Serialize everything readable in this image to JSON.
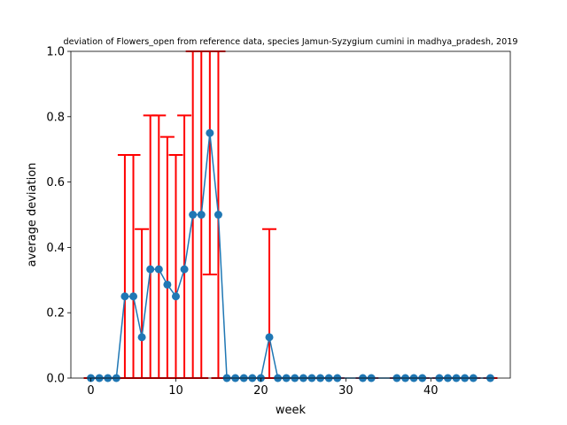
{
  "chart_data": {
    "type": "line",
    "title": "deviation of Flowers_open from reference data, species Jamun-Syzygium cumini in madhya_pradesh, 2019",
    "xlabel": "week",
    "ylabel": "average deviation",
    "xlim": [
      -2.35,
      49.35
    ],
    "ylim": [
      0,
      1
    ],
    "xticks": [
      0,
      10,
      20,
      30,
      40
    ],
    "yticks": [
      0.0,
      0.2,
      0.4,
      0.6,
      0.8,
      1.0
    ],
    "xtick_labels": [
      "0",
      "10",
      "20",
      "30",
      "40"
    ],
    "ytick_labels": [
      "0.0",
      "0.2",
      "0.4",
      "0.6",
      "0.8",
      "1.0"
    ],
    "grid": false,
    "line_color": "#1f77b4",
    "errorbar_color": "#ff0000",
    "series": [
      {
        "x": [
          0,
          1,
          2,
          3,
          4,
          5,
          6,
          7,
          8,
          9,
          10,
          11,
          12,
          13,
          14,
          15,
          16,
          17,
          18,
          19,
          20,
          21,
          22,
          23,
          24,
          25,
          26,
          27,
          28,
          29,
          32,
          33,
          36,
          37,
          38,
          39,
          41,
          42,
          43,
          44,
          45,
          47
        ],
        "y": [
          0,
          0,
          0,
          0,
          0.25,
          0.25,
          0.125,
          0.333,
          0.333,
          0.286,
          0.25,
          0.333,
          0.5,
          0.5,
          0.75,
          0.5,
          0,
          0,
          0,
          0,
          0,
          0.125,
          0,
          0,
          0,
          0,
          0,
          0,
          0,
          0,
          0,
          0,
          0,
          0,
          0,
          0,
          0,
          0,
          0,
          0,
          0,
          0
        ],
        "yerr": [
          0,
          0,
          0,
          0,
          0.433,
          0.433,
          0.331,
          0.471,
          0.471,
          0.452,
          0.433,
          0.471,
          0.5,
          0.5,
          0.433,
          0.5,
          0,
          0,
          0,
          0,
          0,
          0.331,
          0,
          0,
          0,
          0,
          0,
          0,
          0,
          0,
          0,
          0,
          0,
          0,
          0,
          0,
          0,
          0,
          0,
          0,
          0,
          0
        ]
      }
    ]
  }
}
